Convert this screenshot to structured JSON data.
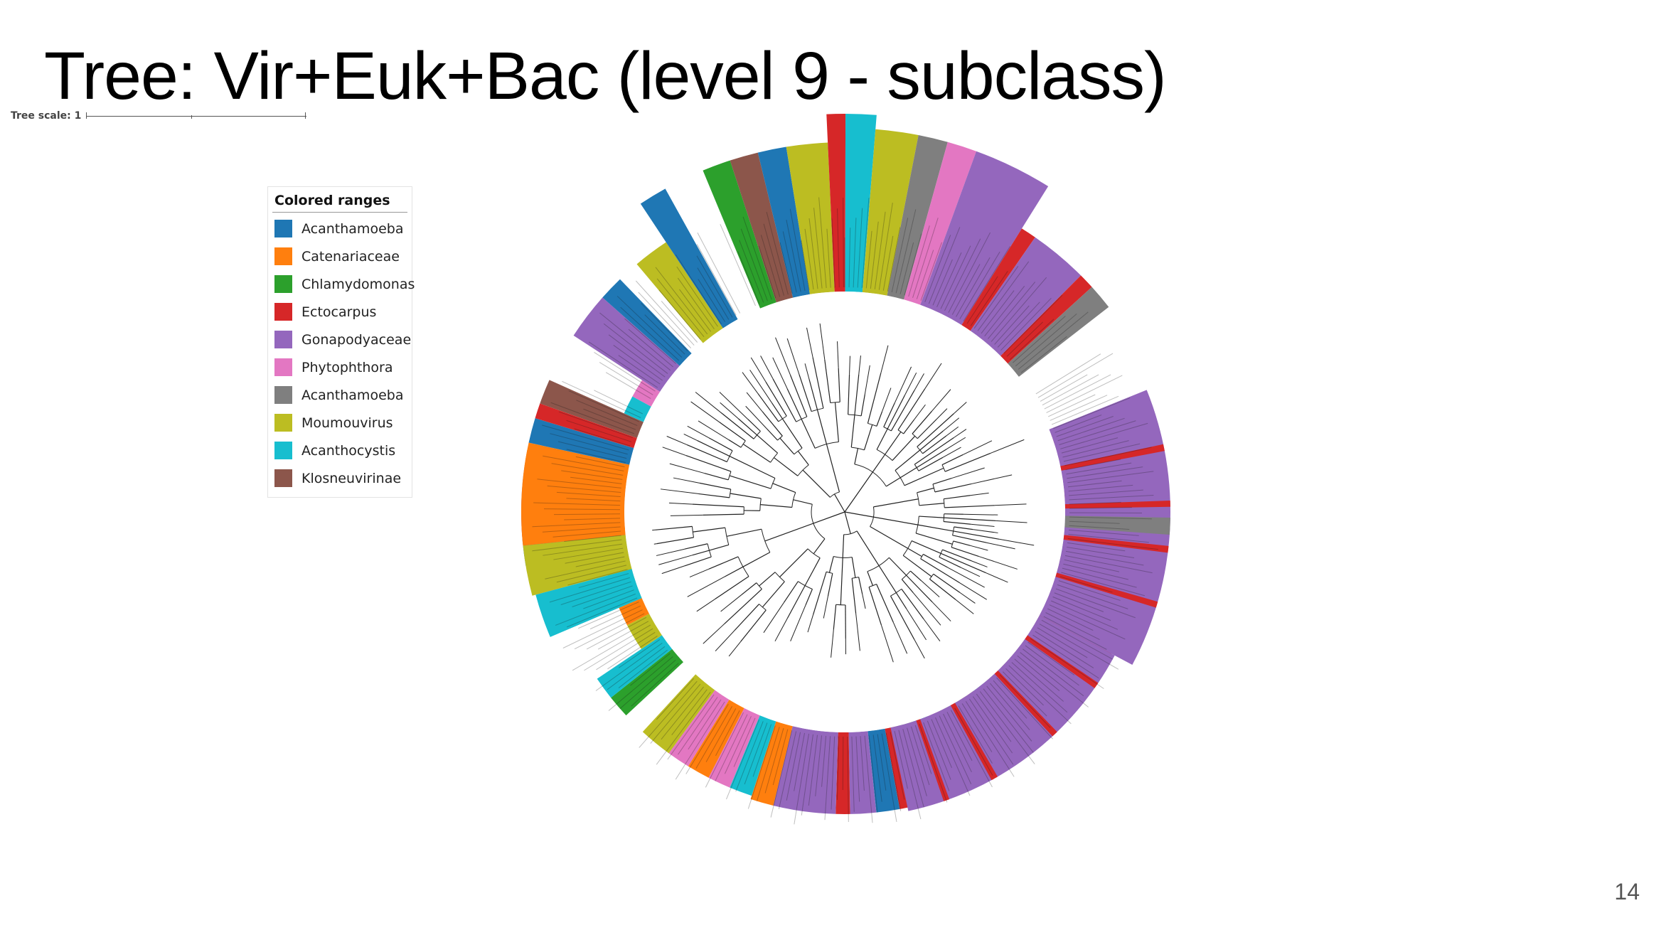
{
  "slide": {
    "title": "Tree: Vir+Euk+Bac (level 9 - subclass)",
    "page_number": "14"
  },
  "tree_scale": {
    "label": "Tree scale: 1"
  },
  "legend": {
    "title": "Colored ranges",
    "items": [
      {
        "label": "Acanthamoeba",
        "color": "#1f77b4"
      },
      {
        "label": "Catenariaceae",
        "color": "#ff7f0e"
      },
      {
        "label": "Chlamydomonas",
        "color": "#2ca02c"
      },
      {
        "label": "Ectocarpus",
        "color": "#d62728"
      },
      {
        "label": "Gonapodyaceae",
        "color": "#9467bd"
      },
      {
        "label": "Phytophthora",
        "color": "#e377c2"
      },
      {
        "label": "Acanthamoeba",
        "color": "#7f7f7f"
      },
      {
        "label": "Moumouvirus",
        "color": "#bcbd22"
      },
      {
        "label": "Acanthocystis",
        "color": "#17becf"
      },
      {
        "label": "Klosneuvirinae",
        "color": "#8c564b"
      }
    ]
  },
  "tree": {
    "layout": "circular",
    "colored_ranges_order_clockwise_from_top": [
      "Moumouvirus",
      "Acanthamoeba",
      "Moumouvirus",
      "Chlamydomonas",
      "Klosneuvirinae",
      "Acanthamoeba",
      "Moumouvirus",
      "Ectocarpus",
      "Acanthocystis",
      "Moumouvirus",
      "Acanthamoeba",
      "Phytophthora",
      "Gonapodyaceae",
      "Ectocarpus",
      "Gonapodyaceae",
      "Ectocarpus",
      "Acanthamoeba",
      "Ectocarpus",
      "Gonapodyaceae",
      "Ectocarpus",
      "Gonapodyaceae",
      "Ectocarpus",
      "Gonapodyaceae",
      "Ectocarpus",
      "Gonapodyaceae",
      "Acanthocystis",
      "Klosneuvirinae",
      "Gonapodyaceae",
      "Ectocarpus",
      "Gonapodyaceae",
      "Klosneuvirinae",
      "Phytophthora",
      "Acanthocystis",
      "Klosneuvirinae",
      "Acanthamoeba",
      "Phytophthora",
      "Acanthocystis",
      "Chlamydomonas",
      "Ectocarpus",
      "Acanthamoeba",
      "Gonapodyaceae",
      "Ectocarpus",
      "Gonapodyaceae",
      "Catenariaceae",
      "Acanthocystis",
      "Phytophthora",
      "Catenariaceae",
      "Phytophthora",
      "Moumouvirus",
      "Acanthamoeba",
      "Chlamydomonas",
      "Acanthocystis",
      "Moumouvirus",
      "Catenariaceae",
      "Acanthamoeba",
      "Chlamydomonas",
      "Klosneuvirinae",
      "Acanthamoeba",
      "Ectocarpus",
      "Gonapodyaceae",
      "Catenariaceae",
      "Acanthamoeba",
      "Ectocarpus",
      "Klosneuvirinae",
      "Acanthocystis",
      "Phytophthora",
      "Gonapodyaceae",
      "Acanthamoeba"
    ]
  }
}
